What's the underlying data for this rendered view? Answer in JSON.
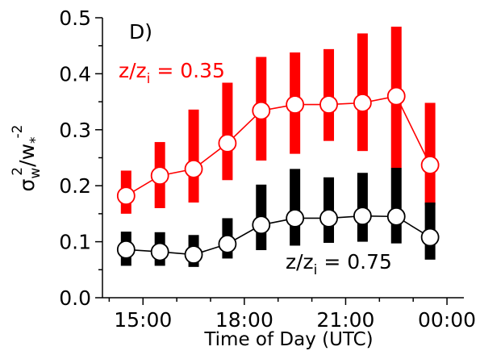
{
  "chart_data": {
    "type": "line",
    "panel_label": "D)",
    "xlabel": "Time of Day (UTC)",
    "ylabel": {
      "sigma": "σ",
      "sigma_sub": "w",
      "sigma_sup": "2",
      "slash_w": "/w",
      "w_sub": "*",
      "w_sup": "-2"
    },
    "xlim": [
      13.8,
      24.5
    ],
    "ylim": [
      0.0,
      0.5
    ],
    "xticks": [
      15,
      18,
      21,
      24
    ],
    "xtick_labels": [
      "15:00",
      "18:00",
      "21:00",
      "00:00"
    ],
    "yticks": [
      0.0,
      0.1,
      0.2,
      0.3,
      0.4,
      0.5
    ],
    "ytick_labels": [
      "0.0",
      "0.1",
      "0.2",
      "0.3",
      "0.4",
      "0.5"
    ],
    "grid": false,
    "series": [
      {
        "name": "z/z_i = 0.35",
        "label_main": "z/z",
        "label_sub": "i",
        "label_rest": " = 0.35",
        "color": "#ff0000",
        "x": [
          14.5,
          15.5,
          16.5,
          17.5,
          18.5,
          19.5,
          20.5,
          21.5,
          22.5,
          23.5
        ],
        "y": [
          0.182,
          0.218,
          0.23,
          0.276,
          0.334,
          0.345,
          0.345,
          0.348,
          0.36,
          0.237
        ],
        "range_low": [
          0.15,
          0.16,
          0.17,
          0.21,
          0.245,
          0.257,
          0.28,
          0.262,
          0.232,
          0.165
        ],
        "range_high": [
          0.227,
          0.278,
          0.336,
          0.384,
          0.43,
          0.438,
          0.444,
          0.472,
          0.484,
          0.348
        ]
      },
      {
        "name": "z/z_i = 0.75",
        "label_main": "z/z",
        "label_sub": "i",
        "label_rest": " = 0.75",
        "color": "#000000",
        "x": [
          14.5,
          15.5,
          16.5,
          17.5,
          18.5,
          19.5,
          20.5,
          21.5,
          22.5,
          23.5
        ],
        "y": [
          0.086,
          0.082,
          0.077,
          0.096,
          0.13,
          0.142,
          0.142,
          0.146,
          0.145,
          0.108
        ],
        "range_low": [
          0.057,
          0.057,
          0.055,
          0.07,
          0.085,
          0.093,
          0.098,
          0.1,
          0.097,
          0.068
        ],
        "range_high": [
          0.118,
          0.117,
          0.112,
          0.142,
          0.202,
          0.23,
          0.215,
          0.223,
          0.232,
          0.17
        ]
      }
    ]
  }
}
